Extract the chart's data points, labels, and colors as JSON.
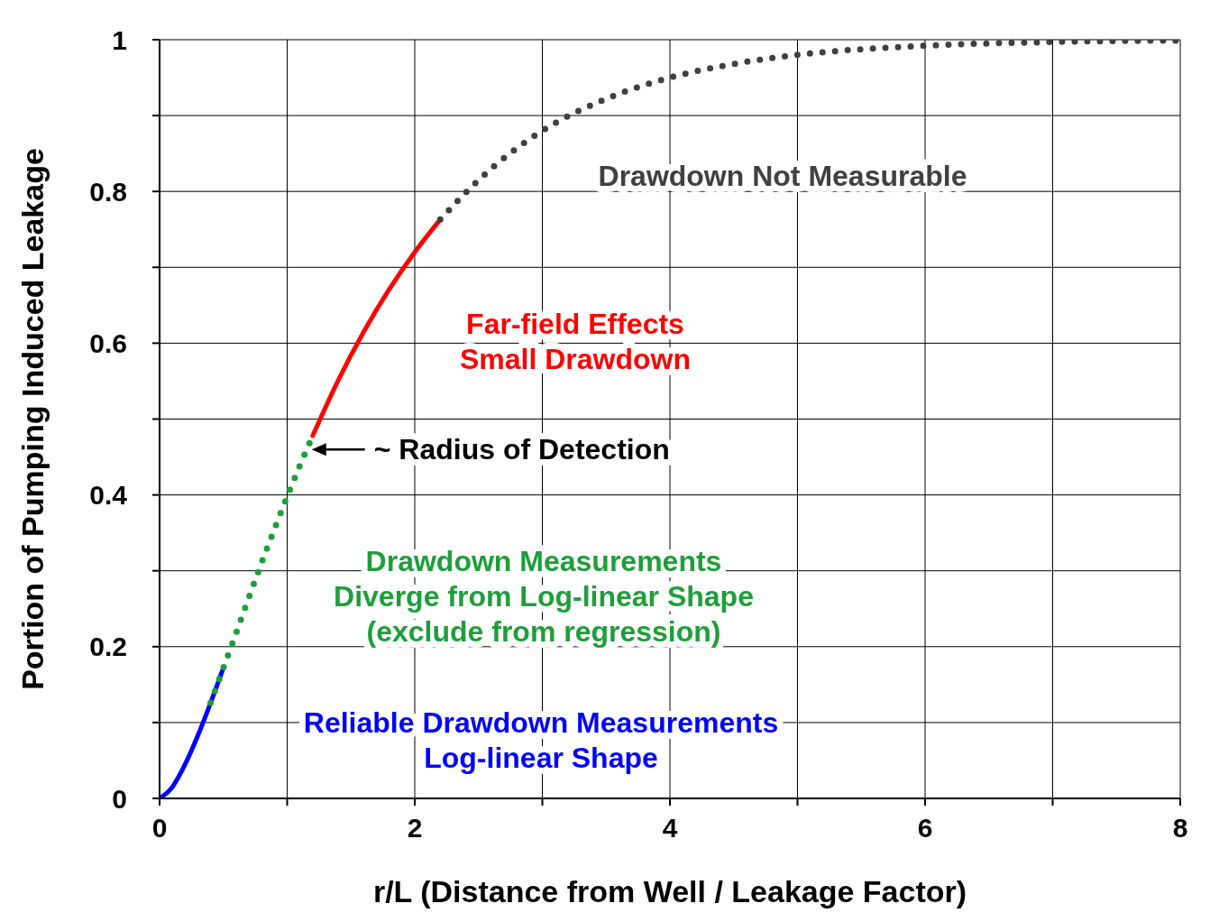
{
  "chart_data": {
    "type": "line",
    "xlabel": "r/L (Distance from Well / Leakage Factor)",
    "ylabel": "Portion of Pumping Induced Leakage",
    "xlim": [
      0,
      8
    ],
    "ylim": [
      0,
      1
    ],
    "xticks": [
      0,
      {
        "value": 1,
        "label": null
      },
      2,
      {
        "value": 3,
        "label": null
      },
      4,
      {
        "value": 5,
        "label": null
      },
      6,
      {
        "value": 7,
        "label": null
      },
      8
    ],
    "yticks": [
      0,
      {
        "value": 0.1,
        "label": null
      },
      0.2,
      {
        "value": 0.3,
        "label": null
      },
      0.4,
      {
        "value": 0.5,
        "label": null
      },
      0.6,
      {
        "value": 0.7,
        "label": null
      },
      0.8,
      {
        "value": 0.9,
        "label": null
      },
      1
    ],
    "grid": true,
    "series": [
      {
        "color": "#0000ff",
        "line_style": "solid",
        "x": [
          0,
          0.1,
          0.2,
          0.3,
          0.4,
          0.5
        ],
        "values": [
          0,
          0.015,
          0.045,
          0.083,
          0.126,
          0.172
        ]
      },
      {
        "color": "#1e9e3a",
        "line_style": "dotted",
        "x": [
          0.4,
          0.5,
          0.6,
          0.7,
          0.8,
          0.9,
          1.0,
          1.1,
          1.2
        ],
        "values": [
          0.126,
          0.172,
          0.218,
          0.265,
          0.311,
          0.355,
          0.398,
          0.439,
          0.478
        ]
      },
      {
        "color": "#ff0000",
        "line_style": "solid",
        "x": [
          1.2,
          1.4,
          1.6,
          1.8,
          2.0,
          2.2
        ],
        "values": [
          0.478,
          0.551,
          0.615,
          0.671,
          0.72,
          0.763
        ]
      },
      {
        "color": "#404040",
        "line_style": "dotted",
        "x": [
          2.2,
          2.5,
          3,
          3.5,
          4,
          4.5,
          5,
          6,
          7,
          8
        ],
        "values": [
          0.763,
          0.815,
          0.88,
          0.922,
          0.95,
          0.968,
          0.98,
          0.992,
          0.997,
          0.999
        ]
      }
    ],
    "annotations": [
      "Reliable Drawdown Measurements\nLog-linear Shape",
      "Drawdown Measurements\nDiverge from Log-linear Shape\n(exclude from regression)",
      "Far-field Effects\nSmall Drawdown",
      "Drawdown Not Measurable",
      {
        "text": "~ Radius of Detection",
        "x": 1.15,
        "y": 0.46
      }
    ]
  }
}
